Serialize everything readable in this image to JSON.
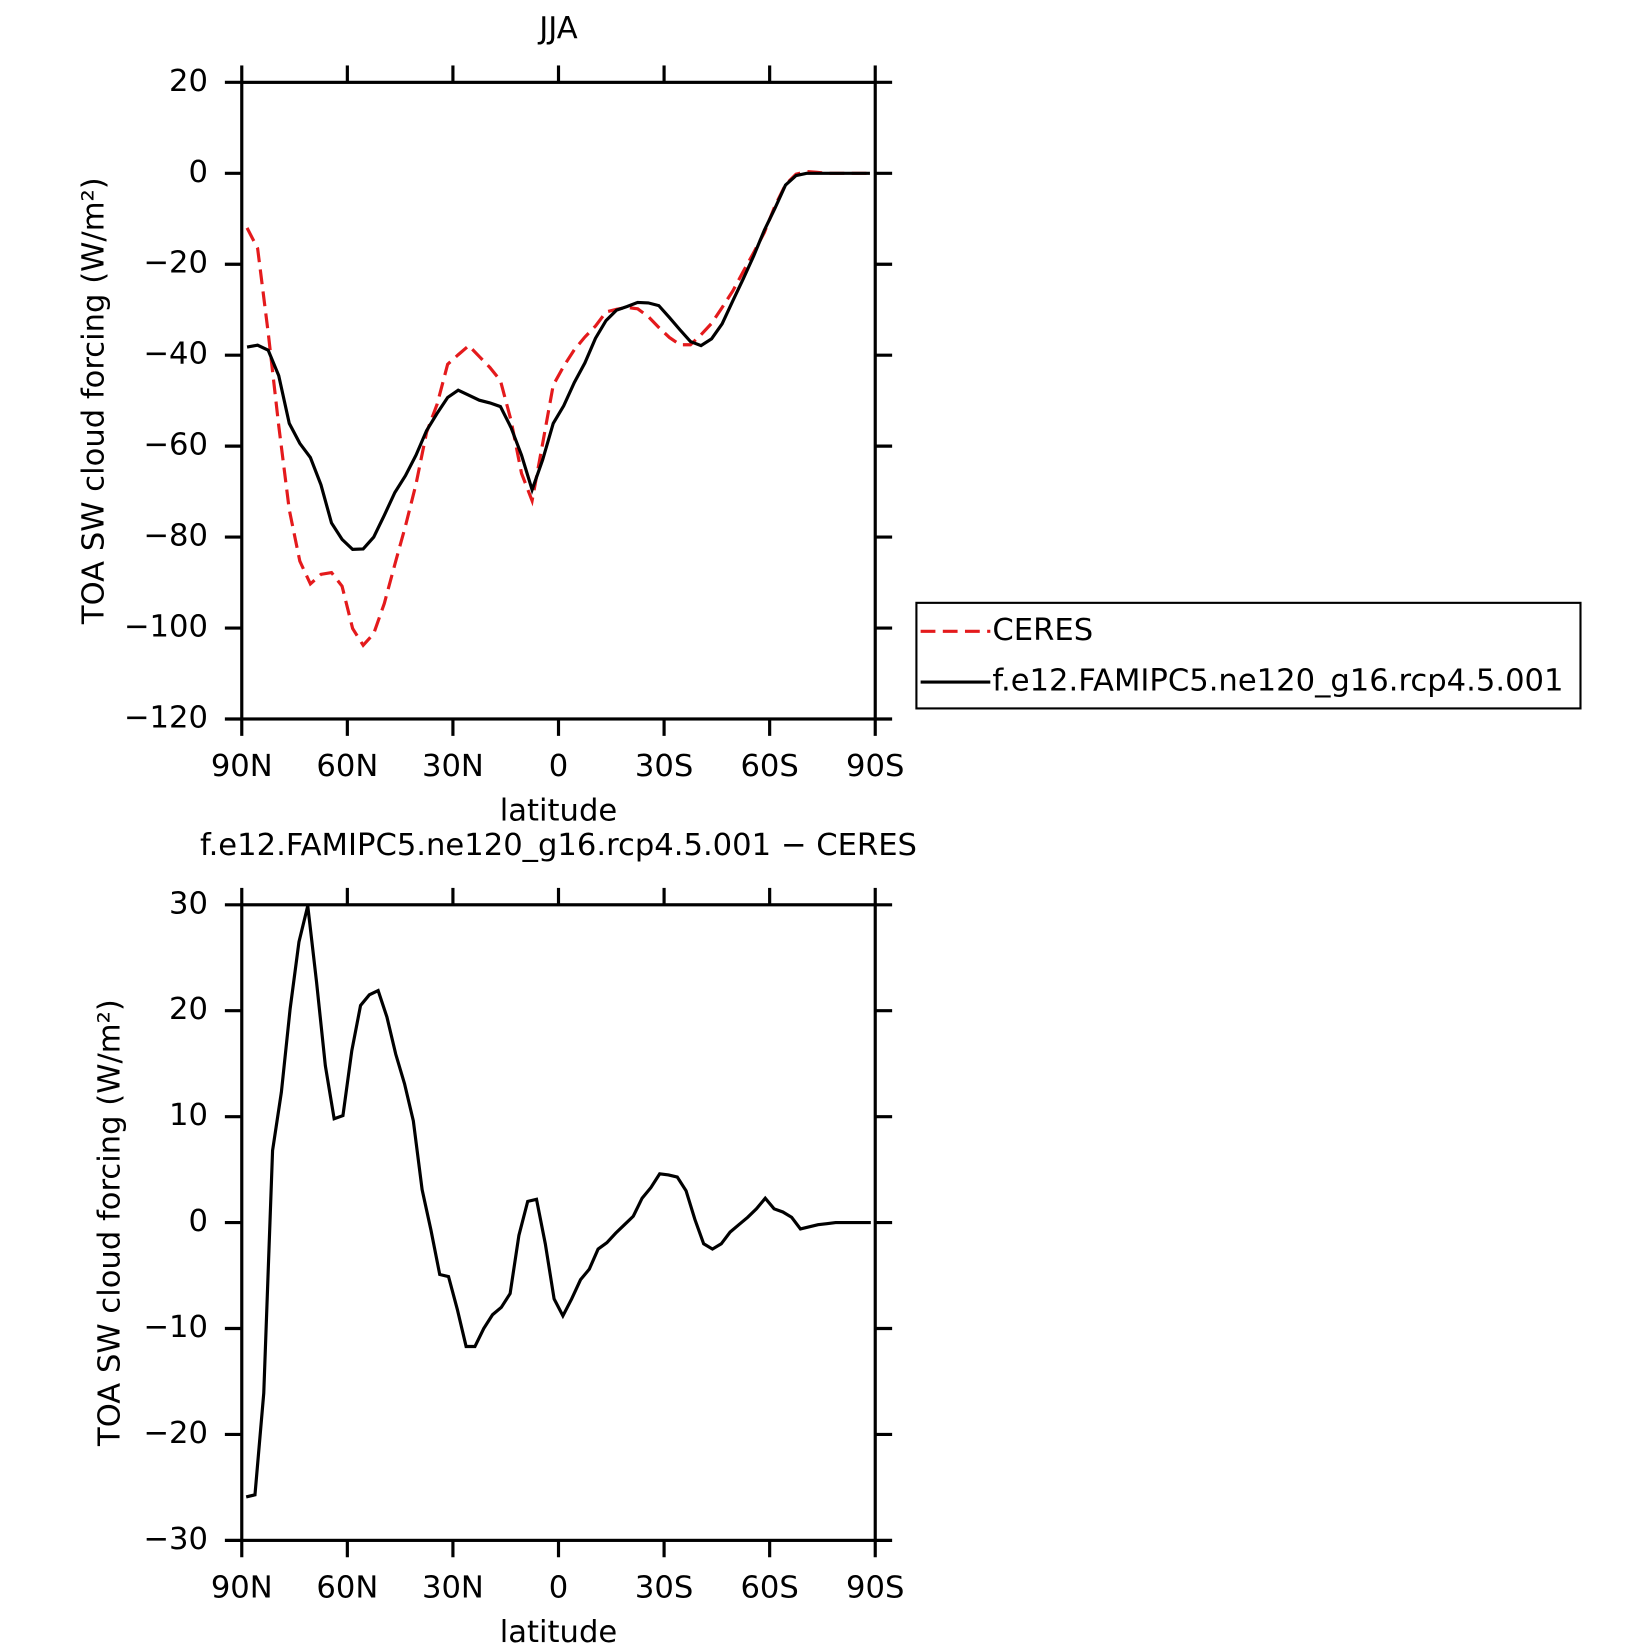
{
  "chart_data": [
    {
      "type": "line",
      "title": "JJA",
      "xlabel": "latitude",
      "ylabel": "TOA SW cloud forcing (W/m²)",
      "x": [
        88.5,
        85.5,
        82.5,
        79.5,
        76.5,
        73.5,
        70.5,
        67.5,
        64.5,
        61.5,
        58.5,
        55.5,
        52.5,
        49.5,
        46.5,
        43.5,
        40.5,
        37.5,
        34.5,
        31.5,
        28.5,
        25.5,
        22.5,
        19.5,
        16.5,
        13.5,
        10.5,
        7.5,
        4.5,
        1.5,
        -1.5,
        -4.5,
        -7.5,
        -10.5,
        -13.5,
        -16.5,
        -19.5,
        -22.5,
        -25.5,
        -28.5,
        -31.5,
        -34.5,
        -37.5,
        -40.5,
        -43.5,
        -46.5,
        -49.5,
        -52.5,
        -55.5,
        -58.5,
        -61.5,
        -64.5,
        -67.5,
        -70.5,
        -73.5,
        -76.5,
        -79.5,
        -82.5,
        -85.5,
        -88.5
      ],
      "series": [
        {
          "name": "CERES",
          "color": "#e41a1c",
          "linestyle": "dashed",
          "values": [
            -12,
            -16.5,
            -35,
            -55.5,
            -74,
            -85.3,
            -90.3,
            -88.2,
            -87.8,
            -90.8,
            -100.1,
            -103.8,
            -101.2,
            -94.6,
            -86,
            -77.6,
            -68.4,
            -57,
            -50.8,
            -42,
            -39.9,
            -37.9,
            -40.3,
            -42.7,
            -45.6,
            -54.3,
            -66,
            -72,
            -59.4,
            -46.6,
            -42.4,
            -38.8,
            -36,
            -33.6,
            -30.5,
            -29.9,
            -29.5,
            -29.8,
            -31.5,
            -33.9,
            -36.1,
            -37.7,
            -37.7,
            -35.5,
            -33,
            -29.5,
            -25.9,
            -21.6,
            -17.4,
            -13,
            -7.2,
            -2.5,
            -0.2,
            0.4,
            0.2,
            0,
            0,
            0,
            0,
            0
          ]
        },
        {
          "name": "f.e12.FAMIPC5.ne120_g16.rcp4.5.001",
          "color": "#000000",
          "linestyle": "solid",
          "values": [
            -38.2,
            -37.8,
            -38.9,
            -44.5,
            -55,
            -59.4,
            -62.5,
            -68.5,
            -76.9,
            -80.5,
            -82.7,
            -82.6,
            -80,
            -75.2,
            -70.2,
            -66.5,
            -62,
            -56.6,
            -52.8,
            -49.3,
            -47.7,
            -48.8,
            -49.9,
            -50.5,
            -51.3,
            -55.9,
            -62,
            -69.6,
            -63,
            -55,
            -51.1,
            -46,
            -41.7,
            -36.3,
            -32.4,
            -30.1,
            -29.3,
            -28.4,
            -28.5,
            -29.1,
            -31.7,
            -34.4,
            -37,
            -37.9,
            -36.4,
            -33.1,
            -28.1,
            -23.2,
            -18.1,
            -12.5,
            -7.7,
            -2.6,
            -0.5,
            0,
            0,
            0,
            0,
            0,
            0,
            0
          ]
        }
      ],
      "xlim": [
        90,
        -90
      ],
      "xticks": [
        {
          "value": 90,
          "label": "90N"
        },
        {
          "value": 60,
          "label": "60N"
        },
        {
          "value": 30,
          "label": "30N"
        },
        0,
        {
          "value": -30,
          "label": "30S"
        },
        {
          "value": -60,
          "label": "60S"
        },
        {
          "value": -90,
          "label": "90S"
        }
      ],
      "ylim": [
        -120,
        20
      ],
      "yticks": [
        {
          "value": -120,
          "label": "−120"
        },
        {
          "value": -100,
          "label": "−100"
        },
        {
          "value": -80,
          "label": "−80"
        },
        {
          "value": -60,
          "label": "−60"
        },
        {
          "value": -40,
          "label": "−40"
        },
        {
          "value": -20,
          "label": "−20"
        },
        0,
        20
      ],
      "legend": "right"
    },
    {
      "type": "line",
      "title": "f.e12.FAMIPC5.ne120_g16.rcp4.5.001 − CERES",
      "xlabel": "latitude",
      "ylabel": "TOA SW cloud forcing (W/m²)",
      "x": [
        88.75,
        86.25,
        83.75,
        81.25,
        78.75,
        76.25,
        73.75,
        71.25,
        68.75,
        66.25,
        63.75,
        61.25,
        58.75,
        56.25,
        53.75,
        51.25,
        48.75,
        46.25,
        43.75,
        41.25,
        38.75,
        36.25,
        33.75,
        31.25,
        28.75,
        26.25,
        23.75,
        21.25,
        18.75,
        16.25,
        13.75,
        11.25,
        8.75,
        6.25,
        3.75,
        1.25,
        -1.25,
        -3.75,
        -6.25,
        -8.75,
        -11.25,
        -13.75,
        -16.25,
        -18.75,
        -21.25,
        -23.75,
        -26.25,
        -28.75,
        -31.25,
        -33.75,
        -36.25,
        -38.75,
        -41.25,
        -43.75,
        -46.25,
        -48.75,
        -51.25,
        -53.75,
        -56.25,
        -58.75,
        -61.25,
        -63.75,
        -66.25,
        -68.75,
        -71.25,
        -73.75,
        -76.25,
        -78.75,
        -81.25,
        -83.75,
        -86.25,
        -88.75
      ],
      "series": [
        {
          "name": "f.e12.FAMIPC5.ne120_g16.rcp4.5.001 − CERES",
          "color": "#000000",
          "linestyle": "solid",
          "values": [
            -25.9,
            -25.7,
            -16.1,
            6.8,
            12.3,
            20.2,
            26.5,
            29.9,
            22.7,
            14.8,
            9.8,
            10.1,
            16.2,
            20.5,
            21.5,
            21.9,
            19.4,
            15.9,
            13.1,
            9.6,
            3.1,
            -0.7,
            -4.9,
            -5.1,
            -8.2,
            -11.7,
            -11.7,
            -10,
            -8.7,
            -8,
            -6.7,
            -1.2,
            2,
            2.2,
            -2,
            -7.2,
            -8.8,
            -7.2,
            -5.4,
            -4.4,
            -2.5,
            -1.9,
            -1,
            -0.2,
            0.6,
            2.3,
            3.3,
            4.6,
            4.5,
            4.3,
            3,
            0.3,
            -2,
            -2.5,
            -2,
            -0.9,
            -0.2,
            0.5,
            1.3,
            2.3,
            1.3,
            1,
            0.5,
            -0.6,
            -0.4,
            -0.2,
            -0.1,
            0,
            0,
            0,
            0,
            0
          ]
        }
      ],
      "xlim": [
        90,
        -90
      ],
      "xticks": [
        {
          "value": 90,
          "label": "90N"
        },
        {
          "value": 60,
          "label": "60N"
        },
        {
          "value": 30,
          "label": "30N"
        },
        0,
        {
          "value": -30,
          "label": "30S"
        },
        {
          "value": -60,
          "label": "60S"
        },
        {
          "value": -90,
          "label": "90S"
        }
      ],
      "ylim": [
        -30,
        30
      ],
      "yticks": [
        {
          "value": -30,
          "label": "−30"
        },
        {
          "value": -20,
          "label": "−20"
        },
        {
          "value": -10,
          "label": "−10"
        },
        0,
        10,
        20,
        30
      ]
    }
  ]
}
